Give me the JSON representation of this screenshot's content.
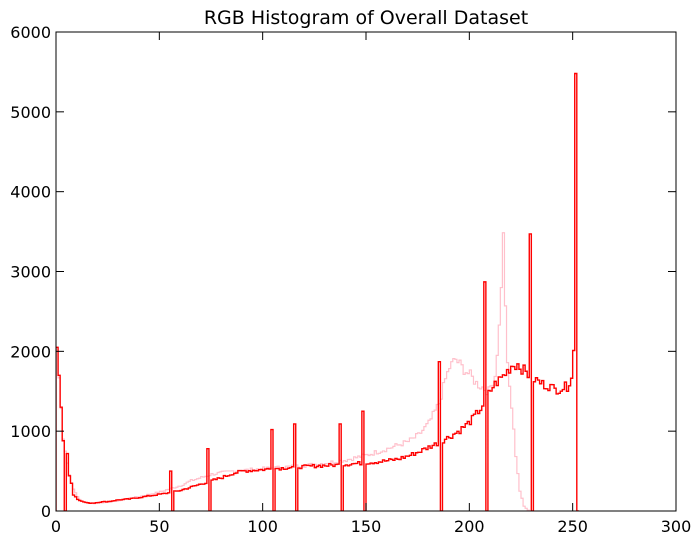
{
  "chart_data": {
    "type": "histogram",
    "title": "RGB Histogram of Overall Dataset",
    "xlabel": "",
    "ylabel": "",
    "xlim": [
      0,
      300
    ],
    "ylim": [
      0,
      6000
    ],
    "x_ticks": [
      0,
      50,
      100,
      150,
      200,
      250,
      300
    ],
    "y_ticks": [
      0,
      1000,
      2000,
      3000,
      4000,
      5000,
      6000
    ],
    "grid": false,
    "legend": "none",
    "bin_width": 1,
    "series": [
      {
        "color": "#ffc0cb",
        "style": "step",
        "points": [
          [
            0,
            2050
          ],
          [
            3,
            900
          ],
          [
            6,
            450
          ],
          [
            8,
            280
          ],
          [
            10,
            180
          ],
          [
            12,
            120
          ],
          [
            15,
            100
          ],
          [
            18,
            95
          ],
          [
            20,
            100
          ],
          [
            25,
            110
          ],
          [
            30,
            130
          ],
          [
            35,
            160
          ],
          [
            40,
            180
          ],
          [
            45,
            210
          ],
          [
            50,
            240
          ],
          [
            55,
            280
          ],
          [
            60,
            320
          ],
          [
            65,
            380
          ],
          [
            70,
            420
          ],
          [
            75,
            460
          ],
          [
            80,
            480
          ],
          [
            85,
            500
          ],
          [
            90,
            510
          ],
          [
            95,
            520
          ],
          [
            100,
            530
          ],
          [
            110,
            550
          ],
          [
            120,
            570
          ],
          [
            130,
            600
          ],
          [
            140,
            640
          ],
          [
            150,
            700
          ],
          [
            160,
            780
          ],
          [
            170,
            870
          ],
          [
            175,
            950
          ],
          [
            180,
            1100
          ],
          [
            185,
            1350
          ],
          [
            188,
            1650
          ],
          [
            190,
            1800
          ],
          [
            193,
            1900
          ],
          [
            196,
            1800
          ],
          [
            200,
            1700
          ],
          [
            203,
            1600
          ],
          [
            206,
            1550
          ],
          [
            209,
            1500
          ],
          [
            212,
            1700
          ],
          [
            214,
            2300
          ],
          [
            216,
            3420
          ],
          [
            218,
            1800
          ],
          [
            220,
            1300
          ],
          [
            222,
            700
          ],
          [
            224,
            250
          ],
          [
            226,
            60
          ],
          [
            228,
            10
          ]
        ]
      },
      {
        "color": "#ff0000",
        "style": "step",
        "points": [
          [
            0,
            2050
          ],
          [
            1,
            1700
          ],
          [
            2,
            1300
          ],
          [
            3,
            880
          ],
          [
            4,
            0
          ],
          [
            5,
            720
          ],
          [
            6,
            450
          ],
          [
            7,
            350
          ],
          [
            8,
            200
          ],
          [
            9,
            180
          ],
          [
            10,
            150
          ],
          [
            12,
            120
          ],
          [
            15,
            100
          ],
          [
            18,
            100
          ],
          [
            20,
            110
          ],
          [
            25,
            120
          ],
          [
            30,
            140
          ],
          [
            35,
            150
          ],
          [
            40,
            170
          ],
          [
            45,
            190
          ],
          [
            50,
            210
          ],
          [
            55,
            230
          ],
          [
            60,
            260
          ],
          [
            65,
            300
          ],
          [
            70,
            340
          ],
          [
            75,
            380
          ],
          [
            80,
            420
          ],
          [
            85,
            470
          ],
          [
            90,
            500
          ],
          [
            95,
            510
          ],
          [
            100,
            520
          ],
          [
            105,
            530
          ],
          [
            110,
            540
          ],
          [
            115,
            550
          ],
          [
            120,
            555
          ],
          [
            125,
            565
          ],
          [
            130,
            570
          ],
          [
            135,
            575
          ],
          [
            140,
            585
          ],
          [
            145,
            595
          ],
          [
            150,
            605
          ],
          [
            155,
            615
          ],
          [
            160,
            630
          ],
          [
            165,
            650
          ],
          [
            170,
            690
          ],
          [
            175,
            740
          ],
          [
            180,
            800
          ],
          [
            185,
            860
          ],
          [
            190,
            930
          ],
          [
            195,
            1010
          ],
          [
            200,
            1120
          ],
          [
            205,
            1280
          ],
          [
            208,
            1420
          ],
          [
            211,
            1560
          ],
          [
            214,
            1640
          ],
          [
            217,
            1720
          ],
          [
            220,
            1820
          ],
          [
            223,
            1840
          ],
          [
            226,
            1760
          ],
          [
            229,
            1680
          ],
          [
            232,
            1640
          ],
          [
            235,
            1590
          ],
          [
            238,
            1570
          ],
          [
            241,
            1520
          ],
          [
            244,
            1540
          ],
          [
            247,
            1560
          ],
          [
            249,
            1700
          ],
          [
            250,
            2000
          ],
          [
            252,
            0
          ]
        ],
        "spikes": [
          [
            55,
            500
          ],
          [
            73,
            780
          ],
          [
            104,
            1020
          ],
          [
            115,
            1090
          ],
          [
            137,
            1090
          ],
          [
            148,
            1250
          ],
          [
            185,
            1870
          ],
          [
            207,
            2870
          ],
          [
            229,
            3470
          ],
          [
            251,
            5480
          ],
          [
            254,
            5380
          ]
        ]
      }
    ]
  }
}
